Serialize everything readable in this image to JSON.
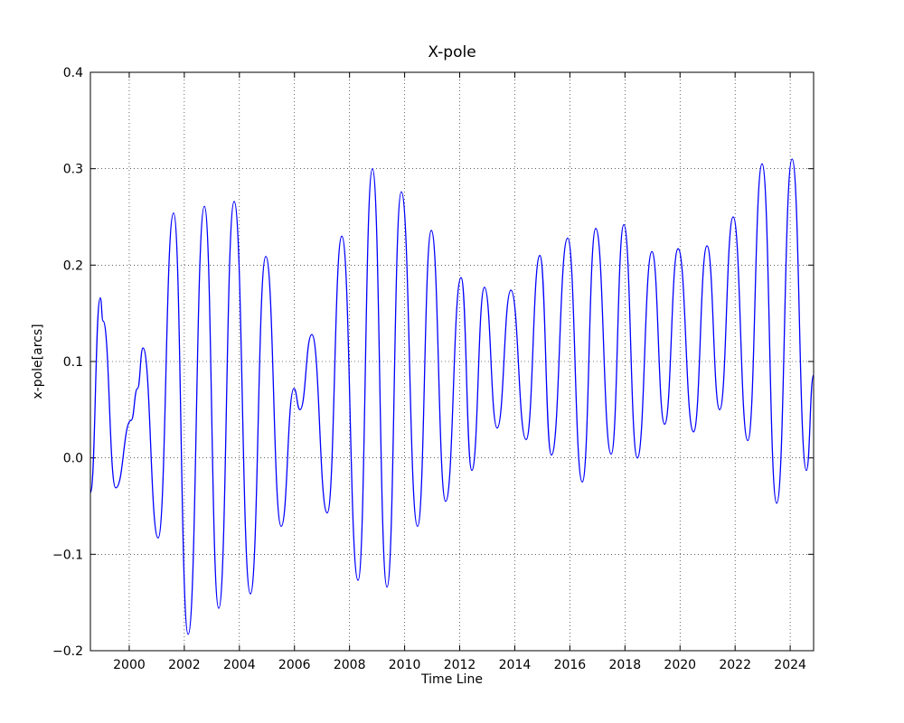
{
  "chart_data": {
    "type": "line",
    "title": "X-pole",
    "x_label": "Time Line",
    "y_label": "x-pole[arcs]",
    "xlim": [
      1998.59,
      2024.85
    ],
    "ylim": [
      -0.2,
      0.4
    ],
    "xticks": [
      2000,
      2002,
      2004,
      2006,
      2008,
      2010,
      2012,
      2014,
      2016,
      2018,
      2020,
      2022,
      2024
    ],
    "yticks": [
      {
        "value": -0.2,
        "label": "−0.2"
      },
      {
        "value": -0.1,
        "label": "−0.1"
      },
      {
        "value": 0,
        "label": "0.0"
      },
      0.1,
      0.2,
      0.3,
      0.4
    ],
    "grid": true,
    "series": [
      {
        "color": "#0000ff",
        "x": [
          1998.59,
          1998.95,
          1999.05,
          1999.51,
          2000.07,
          2000.3,
          2000.5,
          2001.05,
          2001.61,
          2002.14,
          2002.73,
          2003.25,
          2003.81,
          2004.4,
          2004.96,
          2005.52,
          2005.98,
          2006.2,
          2006.63,
          2007.19,
          2007.72,
          2008.31,
          2008.83,
          2009.36,
          2009.88,
          2010.47,
          2010.97,
          2011.49,
          2012.05,
          2012.44,
          2012.9,
          2013.36,
          2013.86,
          2014.41,
          2014.91,
          2015.33,
          2015.92,
          2016.45,
          2016.94,
          2017.5,
          2017.96,
          2018.45,
          2018.98,
          2019.44,
          2019.93,
          2020.49,
          2020.98,
          2021.44,
          2021.93,
          2022.46,
          2022.98,
          2023.51,
          2024.07,
          2024.59,
          2024.85
        ],
        "values": [
          -0.036,
          0.166,
          0.142,
          -0.031,
          0.039,
          0.072,
          0.114,
          -0.083,
          0.254,
          -0.183,
          0.261,
          -0.156,
          0.266,
          -0.141,
          0.209,
          -0.071,
          0.072,
          0.05,
          0.128,
          -0.057,
          0.23,
          -0.127,
          0.3,
          -0.134,
          0.276,
          -0.071,
          0.236,
          -0.045,
          0.187,
          -0.013,
          0.177,
          0.031,
          0.174,
          0.019,
          0.21,
          0.003,
          0.228,
          -0.025,
          0.238,
          0.004,
          0.242,
          0,
          0.214,
          0.035,
          0.217,
          0.027,
          0.22,
          0.05,
          0.25,
          0.018,
          0.305,
          -0.047,
          0.31,
          -0.013,
          0.086
        ]
      }
    ]
  }
}
